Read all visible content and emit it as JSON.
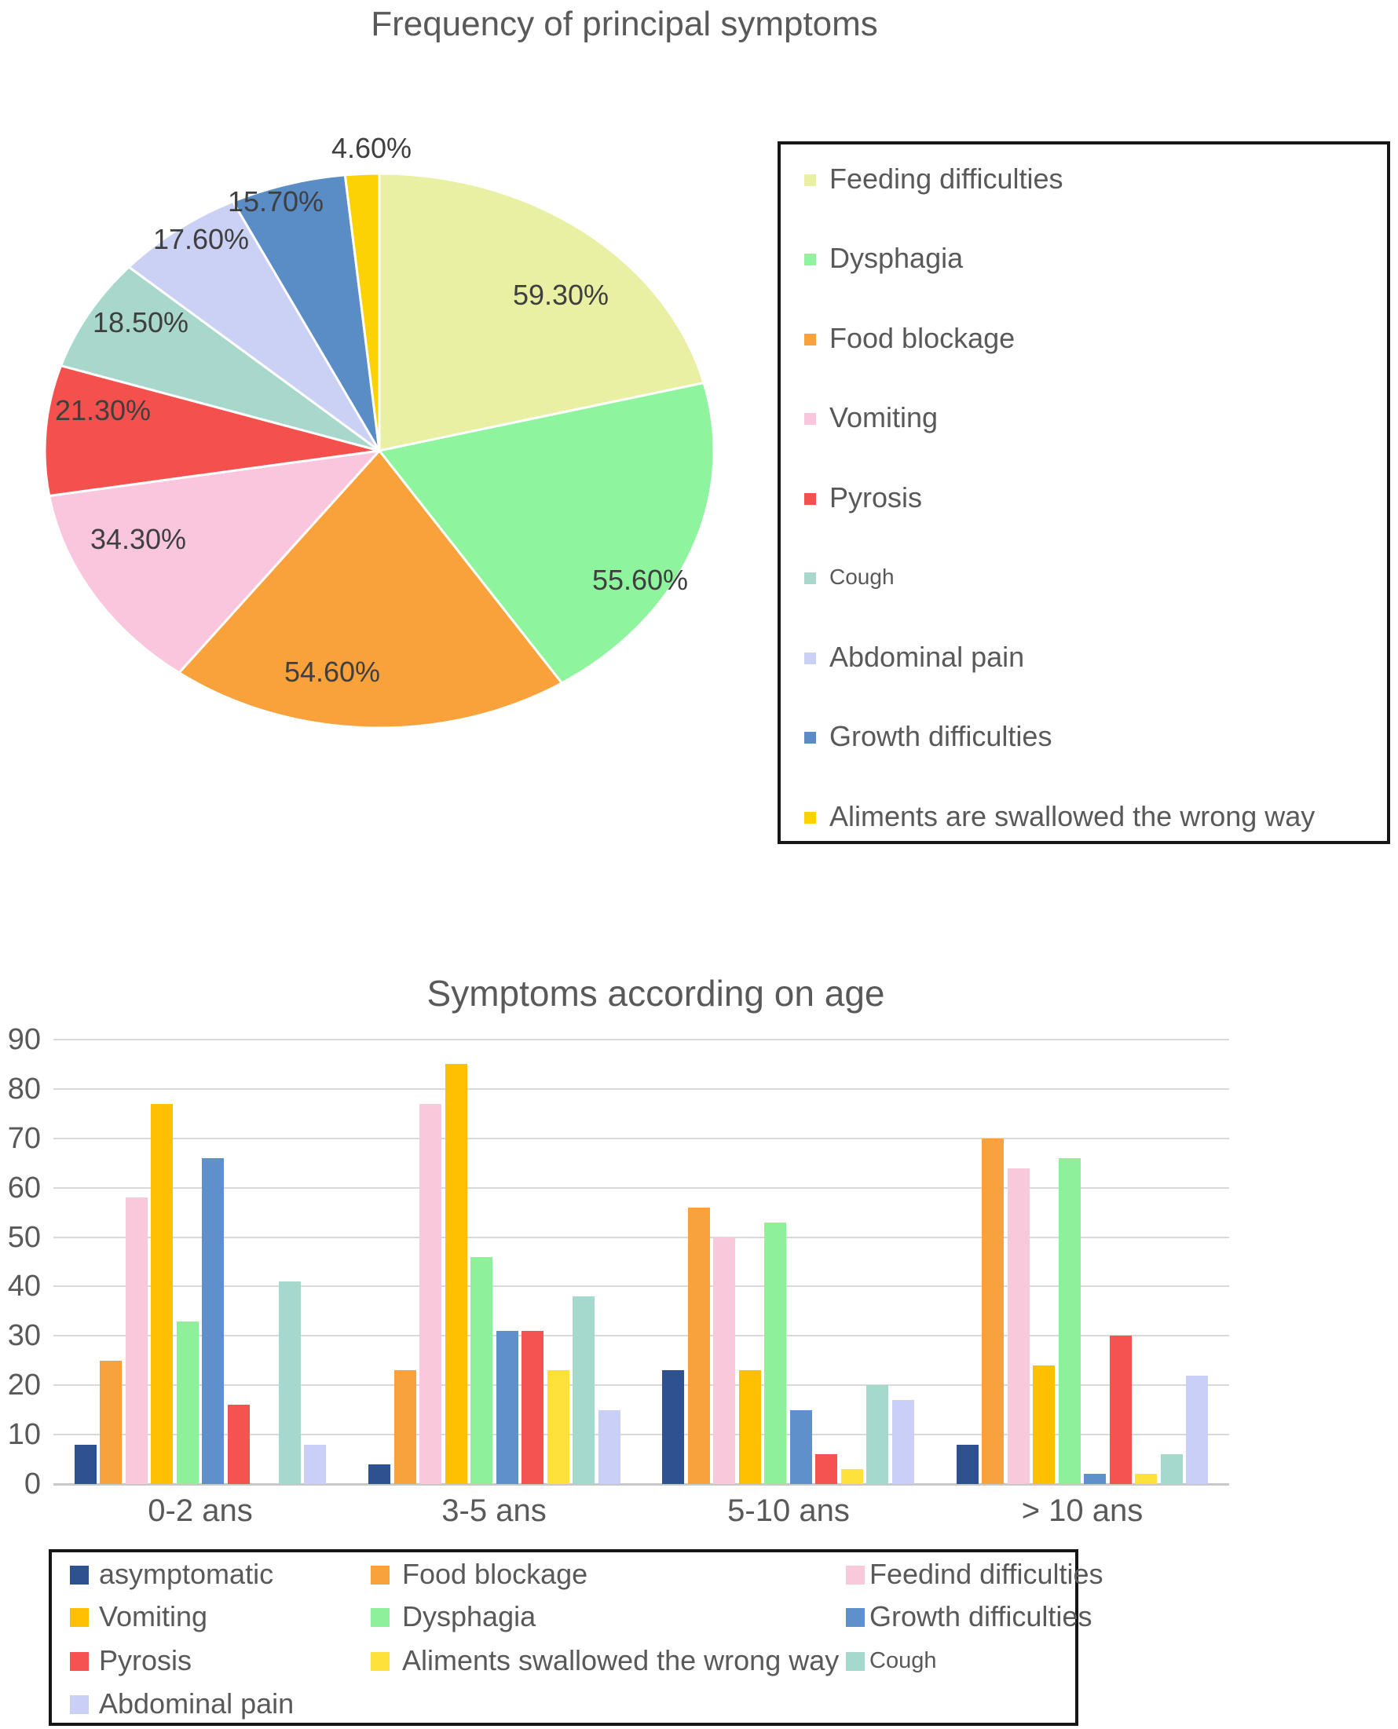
{
  "chart_data": [
    {
      "type": "pie",
      "title": "Frequency of principal symptoms",
      "categories": [
        "Feeding difficulties",
        "Dysphagia",
        "Food blockage",
        "Vomiting",
        "Pyrosis",
        "Cough",
        "Abdominal pain",
        "Growth difficulties",
        "Aliments are swallowed the wrong way"
      ],
      "values": [
        59.3,
        55.6,
        54.6,
        34.3,
        21.3,
        18.5,
        17.6,
        15.7,
        4.6
      ],
      "labels": [
        "59.30%",
        "55.60%",
        "54.60%",
        "34.30%",
        "21.30%",
        "18.50%",
        "17.60%",
        "15.70%",
        "4.60%"
      ],
      "colors": [
        "#EAF0A3",
        "#8EF49D",
        "#F9A23C",
        "#FAC6DD",
        "#F4504E",
        "#A8D8CC",
        "#CBD0F5",
        "#5A8CC6",
        "#FCD205"
      ],
      "legend_position": "right"
    },
    {
      "type": "bar",
      "title": "Symptoms according on age",
      "categories": [
        "0-2 ans",
        "3-5 ans",
        "5-10 ans",
        "> 10 ans"
      ],
      "series": [
        {
          "name": "asymptomatic",
          "color": "#2E5190",
          "values": [
            8,
            4,
            23,
            8
          ]
        },
        {
          "name": "Food blockage",
          "color": "#F7A23C",
          "values": [
            25,
            23,
            56,
            70
          ]
        },
        {
          "name": "Feedind difficulties",
          "color": "#F8C8DB",
          "values": [
            58,
            77,
            50,
            64
          ]
        },
        {
          "name": "Vomiting",
          "color": "#FEC001",
          "values": [
            77,
            85,
            23,
            24
          ]
        },
        {
          "name": "Dysphagia",
          "color": "#8FF09C",
          "values": [
            33,
            46,
            53,
            66
          ]
        },
        {
          "name": "Growth difficulties",
          "color": "#6090CC",
          "values": [
            66,
            31,
            15,
            2
          ]
        },
        {
          "name": "Pyrosis",
          "color": "#F45351",
          "values": [
            16,
            31,
            6,
            30
          ]
        },
        {
          "name": "Aliments swallowed the wrong way",
          "color": "#FFE13B",
          "values": [
            0,
            23,
            3,
            2
          ]
        },
        {
          "name": "Cough",
          "color": "#A6D9CD",
          "values": [
            41,
            38,
            20,
            6
          ]
        },
        {
          "name": "Abdominal pain",
          "color": "#C9CFF6",
          "values": [
            8,
            15,
            17,
            22
          ]
        }
      ],
      "ylim": [
        0,
        90
      ],
      "yticks": [
        0,
        10,
        20,
        30,
        40,
        50,
        60,
        70,
        80,
        90
      ],
      "grid": true,
      "legend_position": "bottom"
    }
  ]
}
